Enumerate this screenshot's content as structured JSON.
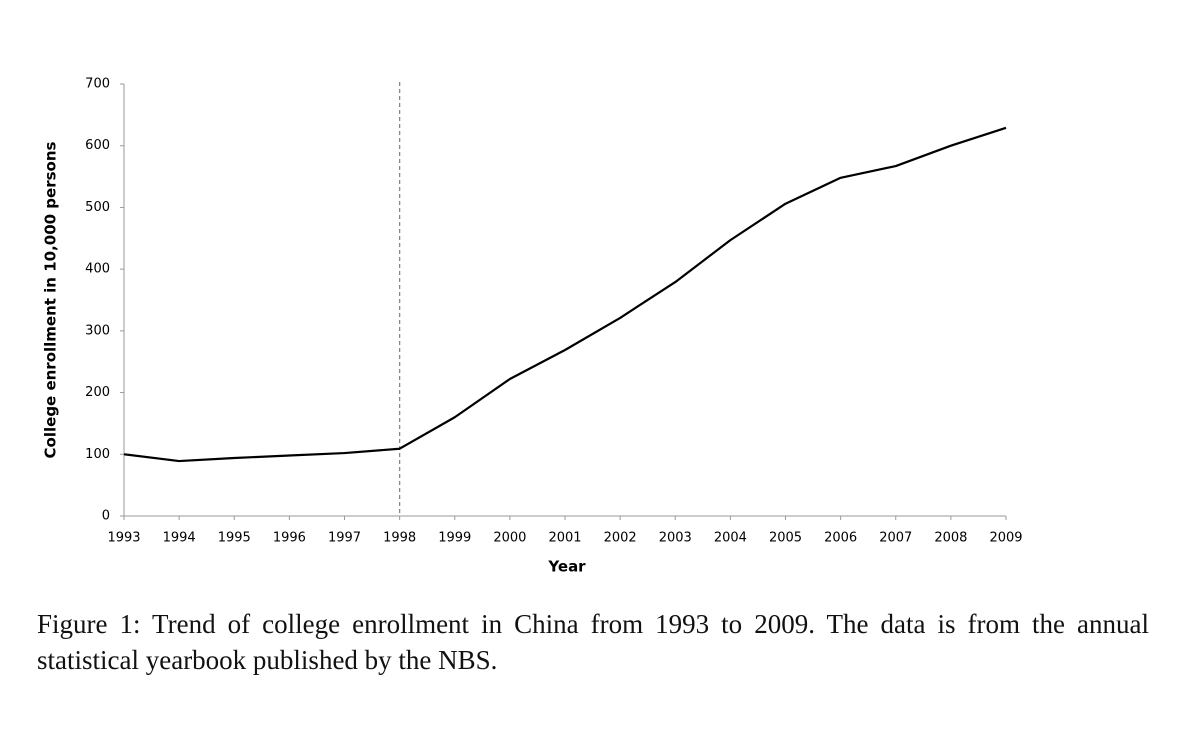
{
  "chart_data": {
    "type": "line",
    "x_label": "Year",
    "y_label": "College enrollment in 10,000 persons",
    "x": [
      1993,
      1994,
      1995,
      1996,
      1997,
      1998,
      1999,
      2000,
      2001,
      2002,
      2003,
      2004,
      2005,
      2006,
      2007,
      2008,
      2009
    ],
    "series": [
      {
        "name": "College enrollment",
        "color": "#000000",
        "values": [
          100,
          89,
          94,
          98,
          102,
          109,
          160,
          222,
          269,
          321,
          379,
          447,
          506,
          548,
          567,
          600,
          629
        ]
      }
    ],
    "xlim": [
      1993,
      2009
    ],
    "xticks": [
      1993,
      1994,
      1995,
      1996,
      1997,
      1998,
      1999,
      2000,
      2001,
      2002,
      2003,
      2004,
      2005,
      2006,
      2007,
      2008,
      2009
    ],
    "ylim": [
      0,
      700
    ],
    "yticks": [
      0,
      100,
      200,
      300,
      400,
      500,
      600,
      700
    ],
    "vline": 1998,
    "grid": false
  },
  "caption": "Figure 1: Trend of college enrollment in China from 1993 to 2009. The data is from the annual statistical yearbook published by the NBS."
}
